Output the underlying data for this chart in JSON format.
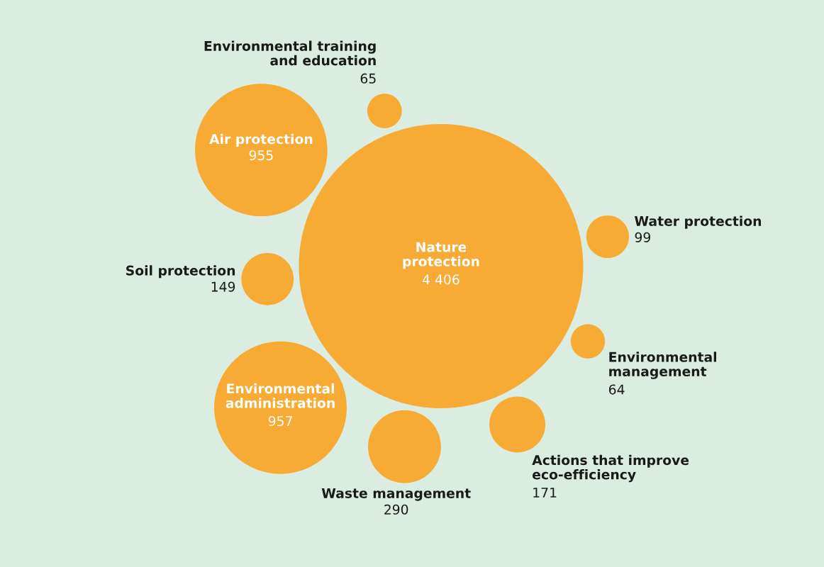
{
  "chart_data": {
    "type": "other",
    "categories": [
      "Nature protection",
      "Environmental training and education",
      "Air protection",
      "Soil protection",
      "Environmental administration",
      "Waste management",
      "Actions that improve eco-efficiency",
      "Environmental management",
      "Water protection"
    ],
    "values": [
      4406,
      65,
      955,
      149,
      957,
      290,
      171,
      64,
      99
    ],
    "value_labels": [
      "4 406",
      "65",
      "955",
      "149",
      "957",
      "290",
      "171",
      "64",
      "99"
    ],
    "color": "#f7ab35"
  }
}
